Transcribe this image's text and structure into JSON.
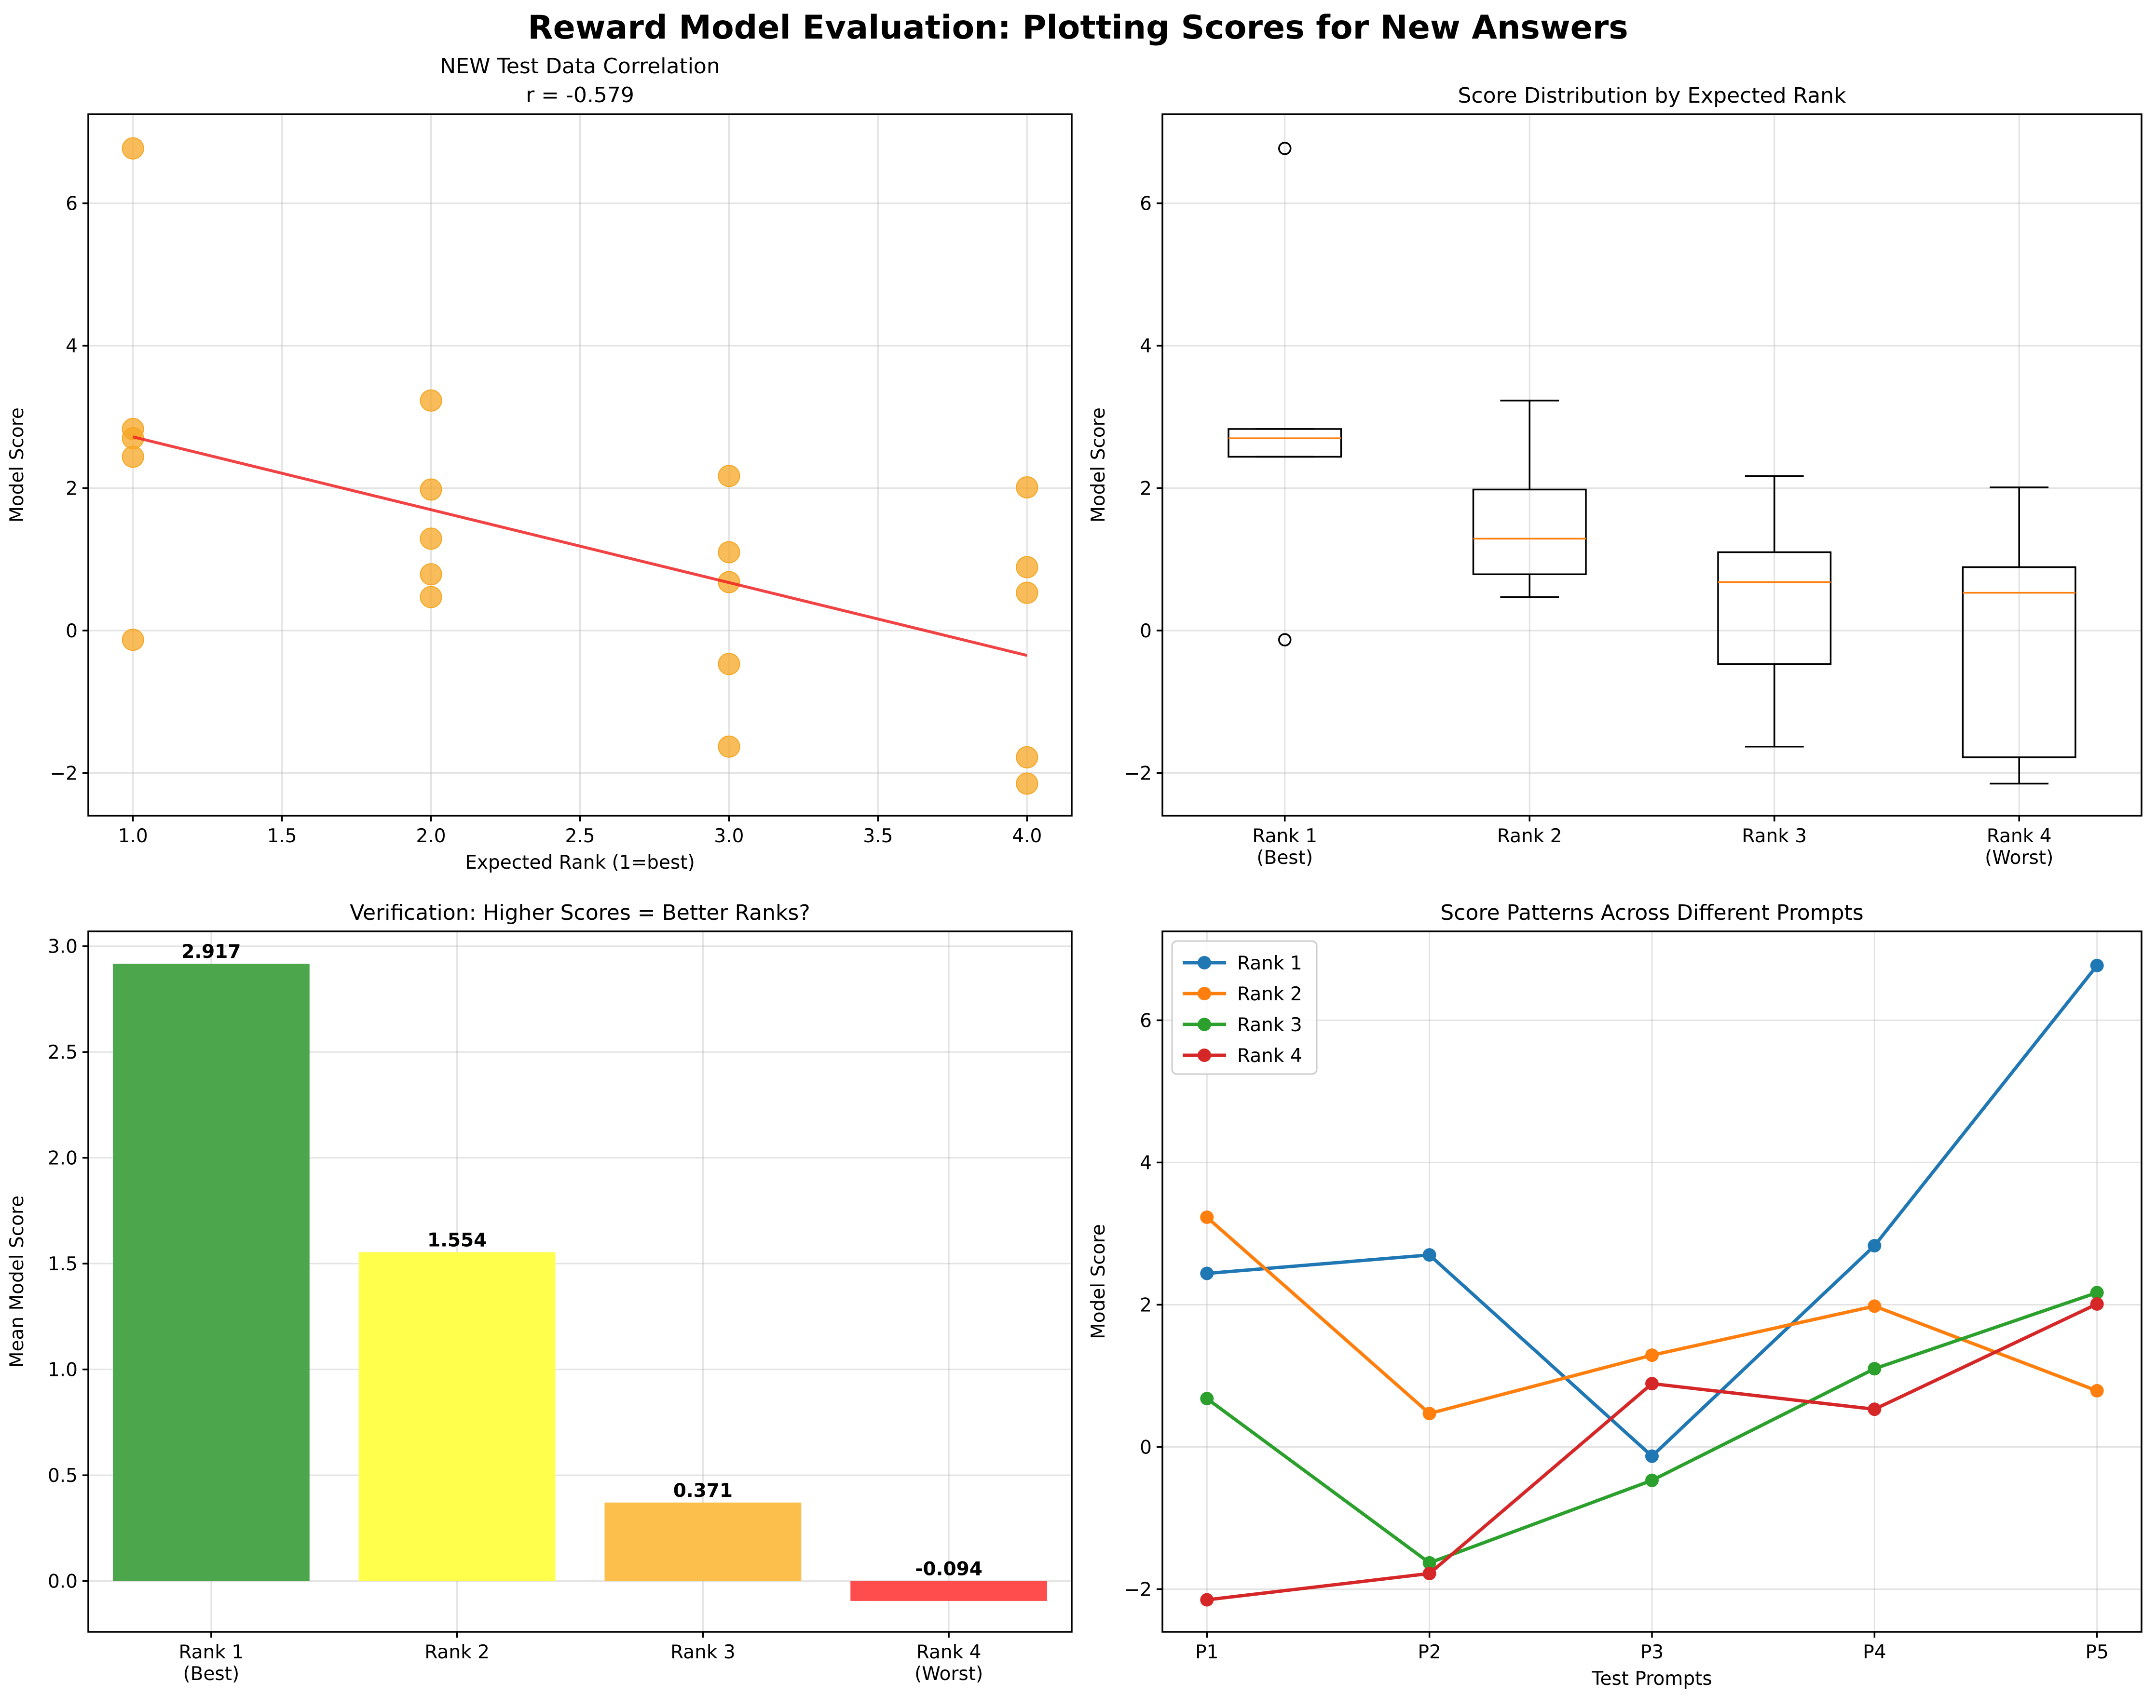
{
  "suptitle": "Reward Model Evaluation: Plotting Scores for New Answers",
  "chart_data": [
    {
      "type": "scatter",
      "title": "NEW Test Data Correlation",
      "subtitle": "r = -0.579",
      "xlabel": "Expected Rank (1=best)",
      "ylabel": "Model Score",
      "xlim": [
        0.85,
        4.15
      ],
      "ylim": [
        -2.6,
        7.25
      ],
      "xticks": [
        "1.0",
        "1.5",
        "2.0",
        "2.5",
        "3.0",
        "3.5",
        "4.0"
      ],
      "yticks": [
        "−2",
        "0",
        "2",
        "4",
        "6"
      ],
      "grid": true,
      "point_color": "#f5a623",
      "line_color": "#ee2222",
      "points": [
        {
          "x": 1,
          "y": 2.44
        },
        {
          "x": 1,
          "y": 2.7
        },
        {
          "x": 1,
          "y": -0.13
        },
        {
          "x": 1,
          "y": 2.83
        },
        {
          "x": 1,
          "y": 6.77
        },
        {
          "x": 2,
          "y": 3.23
        },
        {
          "x": 2,
          "y": 0.47
        },
        {
          "x": 2,
          "y": 1.29
        },
        {
          "x": 2,
          "y": 1.98
        },
        {
          "x": 2,
          "y": 0.79
        },
        {
          "x": 3,
          "y": 0.68
        },
        {
          "x": 3,
          "y": -1.63
        },
        {
          "x": 3,
          "y": -0.47
        },
        {
          "x": 3,
          "y": 1.1
        },
        {
          "x": 3,
          "y": 2.17
        },
        {
          "x": 4,
          "y": -2.15
        },
        {
          "x": 4,
          "y": -1.78
        },
        {
          "x": 4,
          "y": 0.89
        },
        {
          "x": 4,
          "y": 0.53
        },
        {
          "x": 4,
          "y": 2.01
        }
      ],
      "trendline": [
        {
          "x": 1,
          "y": 2.72
        },
        {
          "x": 4,
          "y": -0.35
        }
      ]
    },
    {
      "type": "box",
      "title": "Score Distribution by Expected Rank",
      "ylabel": "Model Score",
      "ylim": [
        -2.6,
        7.25
      ],
      "yticks": [
        "−2",
        "0",
        "2",
        "4",
        "6"
      ],
      "grid": true,
      "categories": [
        [
          "Rank 1",
          "(Best)"
        ],
        [
          "Rank 2",
          ""
        ],
        [
          "Rank 3",
          ""
        ],
        [
          "Rank 4",
          "(Worst)"
        ]
      ],
      "boxes": [
        {
          "q1": 2.44,
          "median": 2.7,
          "q3": 2.83,
          "whisker_low": 2.44,
          "whisker_high": 2.83,
          "outliers": [
            6.77,
            -0.13
          ]
        },
        {
          "q1": 0.79,
          "median": 1.29,
          "q3": 1.98,
          "whisker_low": 0.47,
          "whisker_high": 3.23,
          "outliers": []
        },
        {
          "q1": -0.47,
          "median": 0.68,
          "q3": 1.1,
          "whisker_low": -1.63,
          "whisker_high": 2.17,
          "outliers": []
        },
        {
          "q1": -1.78,
          "median": 0.53,
          "q3": 0.89,
          "whisker_low": -2.15,
          "whisker_high": 2.01,
          "outliers": []
        }
      ],
      "median_color": "#ff7f0e"
    },
    {
      "type": "bar",
      "title": "Verification: Higher Scores = Better Ranks?",
      "ylabel": "Mean Model Score",
      "ylim": [
        -0.24,
        3.07
      ],
      "yticks": [
        "0.0",
        "0.5",
        "1.0",
        "1.5",
        "2.0",
        "2.5",
        "3.0"
      ],
      "grid": true,
      "categories": [
        [
          "Rank 1",
          "(Best)"
        ],
        [
          "Rank 2",
          ""
        ],
        [
          "Rank 3",
          ""
        ],
        [
          "Rank 4",
          "(Worst)"
        ]
      ],
      "values": [
        2.917,
        1.554,
        0.371,
        -0.094
      ],
      "value_labels": [
        "2.917",
        "1.554",
        "0.371",
        "-0.094"
      ],
      "colors": [
        "#4ca64c",
        "#ffff4c",
        "#fdbf4c",
        "#ff4c4c"
      ]
    },
    {
      "type": "line",
      "title": "Score Patterns Across Different Prompts",
      "xlabel": "Test Prompts",
      "ylabel": "Model Score",
      "categories": [
        "P1",
        "P2",
        "P3",
        "P4",
        "P5"
      ],
      "ylim": [
        -2.6,
        7.25
      ],
      "yticks": [
        "−2",
        "0",
        "2",
        "4",
        "6"
      ],
      "grid": true,
      "legend": "top-left",
      "series": [
        {
          "name": "Rank 1",
          "color": "#1f77b4",
          "values": [
            2.44,
            2.7,
            -0.13,
            2.83,
            6.77
          ]
        },
        {
          "name": "Rank 2",
          "color": "#ff7f0e",
          "values": [
            3.23,
            0.47,
            1.29,
            1.98,
            0.79
          ]
        },
        {
          "name": "Rank 3",
          "color": "#2ca02c",
          "values": [
            0.68,
            -1.63,
            -0.47,
            1.1,
            2.17
          ]
        },
        {
          "name": "Rank 4",
          "color": "#d62728",
          "values": [
            -2.15,
            -1.78,
            0.89,
            0.53,
            2.01
          ]
        }
      ]
    }
  ]
}
